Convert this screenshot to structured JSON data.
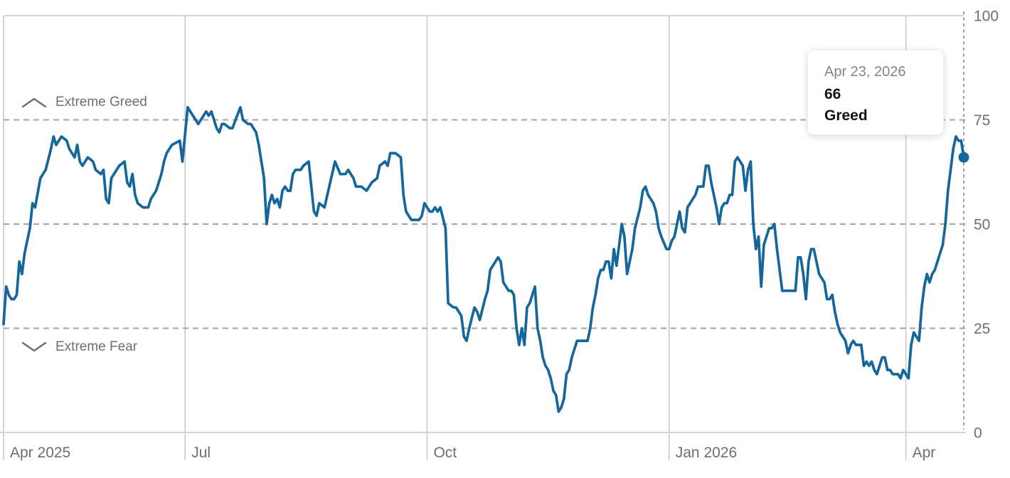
{
  "tooltip": {
    "date": "Apr 23, 2026",
    "value": "66",
    "rating": "Greed"
  },
  "labels": {
    "extreme_greed": "Extreme Greed",
    "extreme_fear": "Extreme Fear"
  },
  "colors": {
    "line": "#15679b",
    "dot": "#15679b",
    "grid_solid": "#c9c9c9",
    "axis_line": "#d4d4d4",
    "grid_dashed": "#a6a6a6",
    "current_line": "#9c9c9c",
    "axis_text": "#6e6e6e",
    "background": "#ffffff"
  },
  "chart_data": {
    "type": "line",
    "x_unit": "days since Apr 23, 2025",
    "x_range_days": [
      0,
      365
    ],
    "x_axis": {
      "tick_labels": [
        "Apr 2025",
        "Jul",
        "Oct",
        "Jan 2026",
        "Apr"
      ],
      "tick_days": [
        0,
        69,
        161,
        253,
        343
      ]
    },
    "y_axis": {
      "tick_labels": [
        "100",
        "75",
        "50",
        "25",
        "0"
      ],
      "ticks": [
        100,
        75,
        50,
        25,
        0
      ],
      "range": [
        0,
        100
      ]
    },
    "thresholds": [
      {
        "value": 75,
        "label": "Extreme Greed"
      },
      {
        "value": 50,
        "label": ""
      },
      {
        "value": 25,
        "label": "Extreme Fear"
      }
    ],
    "grid": "dashed horizontal lines at 25/50/75, solid vertical lines at month ticks, dashed vertical line at current date",
    "legend": "none",
    "end_point": {
      "date": "Apr 23, 2026",
      "value": 66,
      "rating": "Greed"
    },
    "points": [
      [
        0,
        26
      ],
      [
        1,
        35
      ],
      [
        2,
        33
      ],
      [
        3,
        32
      ],
      [
        4,
        32
      ],
      [
        5,
        33
      ],
      [
        6,
        41
      ],
      [
        7,
        38
      ],
      [
        8,
        43
      ],
      [
        9,
        46
      ],
      [
        10,
        49
      ],
      [
        11,
        55
      ],
      [
        12,
        54
      ],
      [
        14,
        61
      ],
      [
        16,
        63
      ],
      [
        18,
        68
      ],
      [
        19,
        71
      ],
      [
        20,
        69
      ],
      [
        22,
        71
      ],
      [
        24,
        70
      ],
      [
        25,
        68
      ],
      [
        27,
        66
      ],
      [
        28,
        69
      ],
      [
        29,
        65
      ],
      [
        30,
        64
      ],
      [
        32,
        66
      ],
      [
        34,
        65
      ],
      [
        35,
        63
      ],
      [
        37,
        62
      ],
      [
        38,
        63
      ],
      [
        39,
        56
      ],
      [
        40,
        55
      ],
      [
        41,
        61
      ],
      [
        43,
        63
      ],
      [
        44,
        64
      ],
      [
        46,
        65
      ],
      [
        47,
        60
      ],
      [
        48,
        59
      ],
      [
        49,
        62
      ],
      [
        50,
        57
      ],
      [
        51,
        55
      ],
      [
        53,
        54
      ],
      [
        55,
        54
      ],
      [
        56,
        56
      ],
      [
        58,
        58
      ],
      [
        59,
        60
      ],
      [
        60,
        62
      ],
      [
        61,
        65
      ],
      [
        62,
        67
      ],
      [
        63,
        68
      ],
      [
        64,
        69
      ],
      [
        67,
        70
      ],
      [
        68,
        65
      ],
      [
        70,
        78
      ],
      [
        71,
        77
      ],
      [
        72,
        76
      ],
      [
        74,
        74
      ],
      [
        77,
        77
      ],
      [
        78,
        76
      ],
      [
        79,
        77
      ],
      [
        81,
        73
      ],
      [
        82,
        72
      ],
      [
        83,
        74
      ],
      [
        84,
        74
      ],
      [
        86,
        73
      ],
      [
        87,
        73
      ],
      [
        90,
        78
      ],
      [
        91,
        75
      ],
      [
        93,
        74
      ],
      [
        94,
        74
      ],
      [
        96,
        72
      ],
      [
        97,
        69
      ],
      [
        98,
        65
      ],
      [
        99,
        61
      ],
      [
        100,
        50
      ],
      [
        101,
        55
      ],
      [
        102,
        57
      ],
      [
        103,
        55
      ],
      [
        104,
        56
      ],
      [
        105,
        54
      ],
      [
        106,
        58
      ],
      [
        107,
        59
      ],
      [
        108,
        58
      ],
      [
        109,
        58
      ],
      [
        110,
        62
      ],
      [
        111,
        63
      ],
      [
        113,
        63
      ],
      [
        114,
        64
      ],
      [
        116,
        65
      ],
      [
        118,
        53
      ],
      [
        119,
        52
      ],
      [
        120,
        55
      ],
      [
        122,
        54
      ],
      [
        126,
        65
      ],
      [
        128,
        62
      ],
      [
        130,
        62
      ],
      [
        131,
        63
      ],
      [
        133,
        61
      ],
      [
        134,
        59
      ],
      [
        136,
        59
      ],
      [
        138,
        58
      ],
      [
        140,
        60
      ],
      [
        142,
        61
      ],
      [
        143,
        64
      ],
      [
        145,
        65
      ],
      [
        146,
        64
      ],
      [
        147,
        67
      ],
      [
        149,
        67
      ],
      [
        151,
        66
      ],
      [
        152,
        57
      ],
      [
        153,
        53
      ],
      [
        155,
        51
      ],
      [
        158,
        51
      ],
      [
        159,
        52
      ],
      [
        160,
        55
      ],
      [
        162,
        53
      ],
      [
        163,
        53
      ],
      [
        164,
        54
      ],
      [
        165,
        53
      ],
      [
        166,
        54
      ],
      [
        168,
        49
      ],
      [
        169,
        31
      ],
      [
        171,
        30
      ],
      [
        172,
        30
      ],
      [
        174,
        28
      ],
      [
        175,
        23
      ],
      [
        176,
        22
      ],
      [
        177,
        25
      ],
      [
        179,
        30
      ],
      [
        180,
        29
      ],
      [
        181,
        27
      ],
      [
        183,
        32
      ],
      [
        184,
        34
      ],
      [
        185,
        39
      ],
      [
        188,
        42
      ],
      [
        189,
        41
      ],
      [
        190,
        36
      ],
      [
        191,
        35
      ],
      [
        192,
        34
      ],
      [
        193,
        34
      ],
      [
        194,
        33
      ],
      [
        195,
        25
      ],
      [
        196,
        21
      ],
      [
        197,
        25
      ],
      [
        198,
        21
      ],
      [
        199,
        30
      ],
      [
        200,
        31
      ],
      [
        202,
        35
      ],
      [
        203,
        25
      ],
      [
        204,
        22
      ],
      [
        205,
        18
      ],
      [
        206,
        16
      ],
      [
        207,
        15
      ],
      [
        208,
        13
      ],
      [
        209,
        10
      ],
      [
        210,
        9
      ],
      [
        211,
        5
      ],
      [
        212,
        6
      ],
      [
        213,
        8
      ],
      [
        214,
        14
      ],
      [
        215,
        15
      ],
      [
        216,
        18
      ],
      [
        217,
        20
      ],
      [
        218,
        22
      ],
      [
        219,
        22
      ],
      [
        221,
        22
      ],
      [
        222,
        22
      ],
      [
        223,
        25
      ],
      [
        224,
        30
      ],
      [
        225,
        33
      ],
      [
        226,
        37
      ],
      [
        227,
        39
      ],
      [
        228,
        39
      ],
      [
        229,
        41
      ],
      [
        230,
        41
      ],
      [
        231,
        37
      ],
      [
        232,
        44
      ],
      [
        233,
        40
      ],
      [
        234,
        45
      ],
      [
        235,
        50
      ],
      [
        236,
        47
      ],
      [
        237,
        38
      ],
      [
        239,
        44
      ],
      [
        240,
        49
      ],
      [
        242,
        54
      ],
      [
        243,
        58
      ],
      [
        244,
        59
      ],
      [
        245,
        57
      ],
      [
        247,
        55
      ],
      [
        248,
        53
      ],
      [
        249,
        49
      ],
      [
        250,
        47
      ],
      [
        252,
        44
      ],
      [
        253,
        44
      ],
      [
        254,
        46
      ],
      [
        255,
        47
      ],
      [
        257,
        53
      ],
      [
        258,
        49
      ],
      [
        259,
        48
      ],
      [
        260,
        54
      ],
      [
        262,
        56
      ],
      [
        263,
        57
      ],
      [
        264,
        59
      ],
      [
        265,
        59
      ],
      [
        266,
        59
      ],
      [
        267,
        64
      ],
      [
        268,
        64
      ],
      [
        269,
        60
      ],
      [
        270,
        57
      ],
      [
        271,
        54
      ],
      [
        272,
        50
      ],
      [
        273,
        54
      ],
      [
        274,
        55
      ],
      [
        275,
        55
      ],
      [
        276,
        57
      ],
      [
        277,
        57
      ],
      [
        278,
        65
      ],
      [
        279,
        66
      ],
      [
        280,
        65
      ],
      [
        281,
        64
      ],
      [
        282,
        58
      ],
      [
        283,
        63
      ],
      [
        284,
        65
      ],
      [
        285,
        50
      ],
      [
        286,
        44
      ],
      [
        287,
        47
      ],
      [
        288,
        35
      ],
      [
        289,
        45
      ],
      [
        290,
        47
      ],
      [
        291,
        49
      ],
      [
        292,
        49
      ],
      [
        293,
        50
      ],
      [
        294,
        44
      ],
      [
        295,
        39
      ],
      [
        296,
        34
      ],
      [
        297,
        34
      ],
      [
        299,
        34
      ],
      [
        301,
        34
      ],
      [
        302,
        42
      ],
      [
        303,
        42
      ],
      [
        304,
        38
      ],
      [
        305,
        32
      ],
      [
        306,
        41
      ],
      [
        307,
        44
      ],
      [
        308,
        44
      ],
      [
        309,
        41
      ],
      [
        310,
        38
      ],
      [
        312,
        36
      ],
      [
        313,
        32
      ],
      [
        314,
        32
      ],
      [
        315,
        33
      ],
      [
        316,
        29
      ],
      [
        317,
        26
      ],
      [
        318,
        24
      ],
      [
        319,
        23
      ],
      [
        320,
        22
      ],
      [
        321,
        19
      ],
      [
        322,
        21
      ],
      [
        323,
        22
      ],
      [
        324,
        21
      ],
      [
        325,
        21
      ],
      [
        326,
        21
      ],
      [
        327,
        16
      ],
      [
        328,
        17
      ],
      [
        329,
        16
      ],
      [
        330,
        17
      ],
      [
        331,
        15
      ],
      [
        332,
        14
      ],
      [
        334,
        18
      ],
      [
        335,
        18
      ],
      [
        336,
        15
      ],
      [
        337,
        15
      ],
      [
        338,
        14
      ],
      [
        340,
        14
      ],
      [
        341,
        13
      ],
      [
        342,
        15
      ],
      [
        343,
        14
      ],
      [
        344,
        13
      ],
      [
        345,
        21
      ],
      [
        346,
        24
      ],
      [
        347,
        23
      ],
      [
        348,
        22
      ],
      [
        349,
        30
      ],
      [
        350,
        35
      ],
      [
        351,
        38
      ],
      [
        352,
        36
      ],
      [
        353,
        38
      ],
      [
        354,
        39
      ],
      [
        355,
        41
      ],
      [
        356,
        43
      ],
      [
        357,
        45
      ],
      [
        358,
        50
      ],
      [
        359,
        58
      ],
      [
        360,
        63
      ],
      [
        361,
        68
      ],
      [
        362,
        71
      ],
      [
        363,
        70
      ],
      [
        364,
        70
      ],
      [
        365,
        66
      ]
    ]
  }
}
